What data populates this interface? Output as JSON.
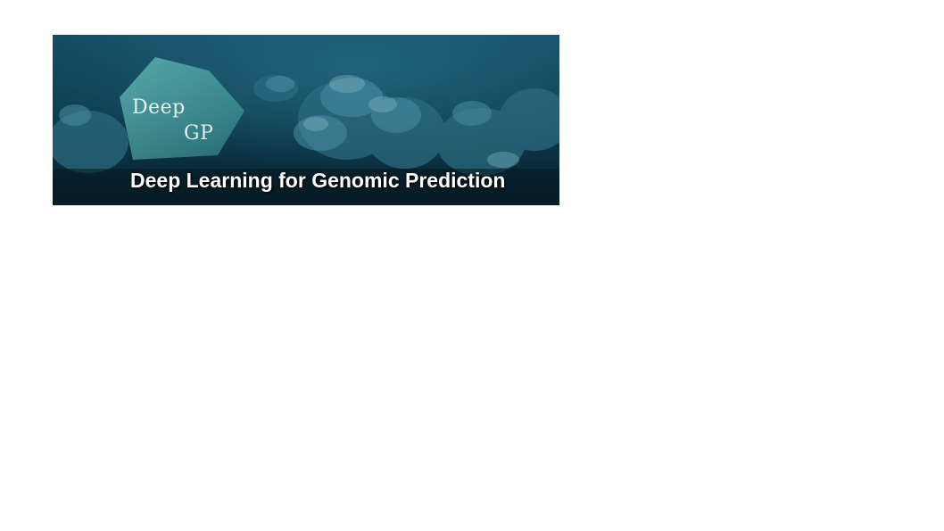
{
  "banner": {
    "logo_line1": "Deep",
    "logo_line2": "GP",
    "title": "Deep Learning for Genomic Prediction"
  },
  "colors": {
    "background": "#ffffff",
    "banner_water": "#0f4a60",
    "banner_dark": "#061820",
    "logo_shape": "#5fb7b3",
    "title_text": "#ffffff"
  }
}
